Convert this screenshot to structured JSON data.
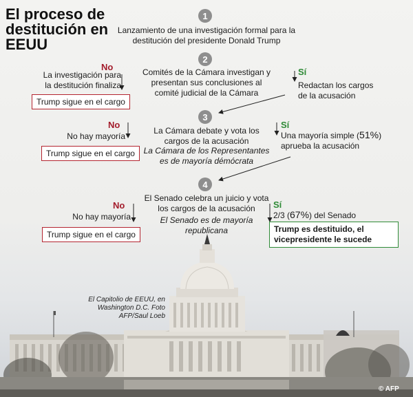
{
  "title": "El proceso de destitución en EEUU",
  "steps": [
    {
      "num": "1",
      "text": "Lanzamiento de una investigación formal para la destitución del presidente  Donald Trump"
    },
    {
      "num": "2",
      "text": "Comités de la Cámara investigan y presentan sus conclusiones al comité judicial de la Cámara"
    },
    {
      "num": "3",
      "text": "La Cámara debate y vota los cargos de la acusación",
      "note": "La Cámara de los Representantes es de mayoría démócrata"
    },
    {
      "num": "4",
      "text": "El Senado celebra un juicio y vota los cargos de la acusación",
      "note": "El Senado es de mayoría republicana"
    }
  ],
  "branches": {
    "no_label": "No",
    "si_label": "Sí",
    "step2_no": "La investigación para la destitución finaliza",
    "step2_si": "Redactan los cargos de la acusación",
    "step3_no": "No hay mayoría",
    "step3_si_pre": "Una mayoría simple (",
    "step3_si_pct": "51%",
    "step3_si_post": ") aprueba la acusación",
    "step4_no": "No hay mayoría",
    "step4_si_pre": "2/3 (",
    "step4_si_pct": "67%",
    "step4_si_post": ") del Senado",
    "outcome_stay": "Trump sigue en el cargo",
    "outcome_removed": "Trump es destituido, el vicepresidente le sucede"
  },
  "caption": "El Capitolio de EEUU, en Washington D.C. Foto AFP/Saul Loeb",
  "credit": "© AFP",
  "colors": {
    "no": "#a31c2b",
    "si": "#2e8a36",
    "step": "#8e8e8e"
  }
}
